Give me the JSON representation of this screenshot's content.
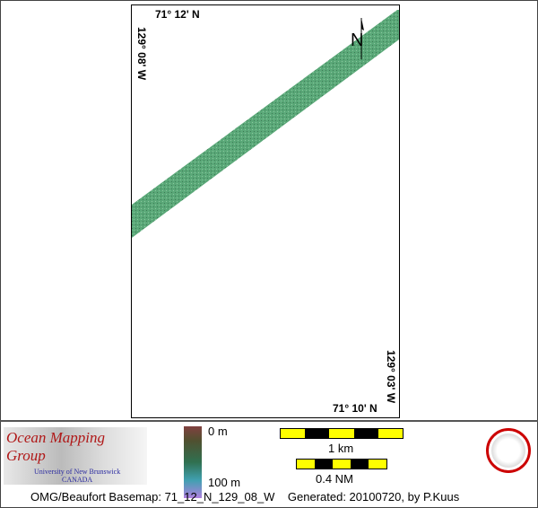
{
  "map": {
    "lat_top": "71° 12' N",
    "lat_bottom": "71° 10' N",
    "lon_left": "129° 08' W",
    "lon_right": "129° 03' W",
    "north_label": "N",
    "swath_color": "#5aa878"
  },
  "legend": {
    "org_title": "Ocean Mapping Group",
    "org_sub1": "University of New Brunswick",
    "org_sub2": "CANADA",
    "depth_top": "0 m",
    "depth_bottom": "100 m",
    "scale_km": "1 km",
    "scale_nm": "0.4 NM",
    "footer": "OMG/Beaufort Basemap: 71_12_N_129_08_W    Generated: 20100720, by P.Kuus"
  }
}
